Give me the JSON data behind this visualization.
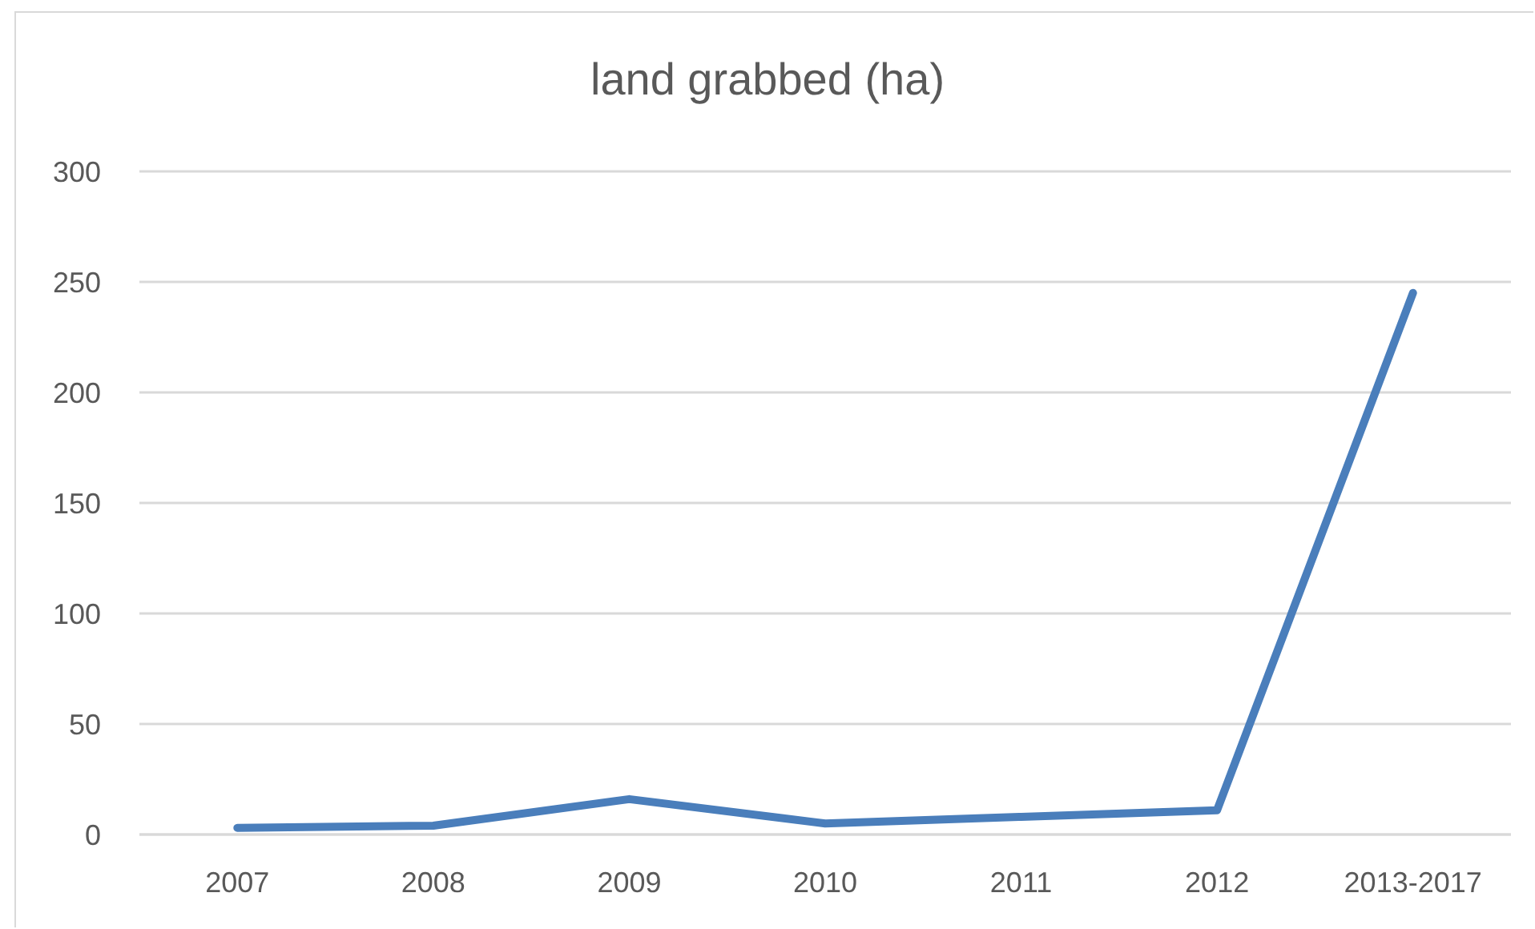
{
  "chart_data": {
    "type": "line",
    "title": "land grabbed (ha)",
    "categories": [
      "2007",
      "2008",
      "2009",
      "2010",
      "2011",
      "2012",
      "2013-2017"
    ],
    "series": [
      {
        "color": "#4a7ebb",
        "values": [
          3,
          4,
          16,
          5,
          8,
          11,
          245
        ]
      }
    ],
    "ylim": [
      0,
      300
    ],
    "yticks": [
      0,
      50,
      100,
      150,
      200,
      250,
      300
    ],
    "grid": "y",
    "marker": "none",
    "line_style": "solid"
  }
}
